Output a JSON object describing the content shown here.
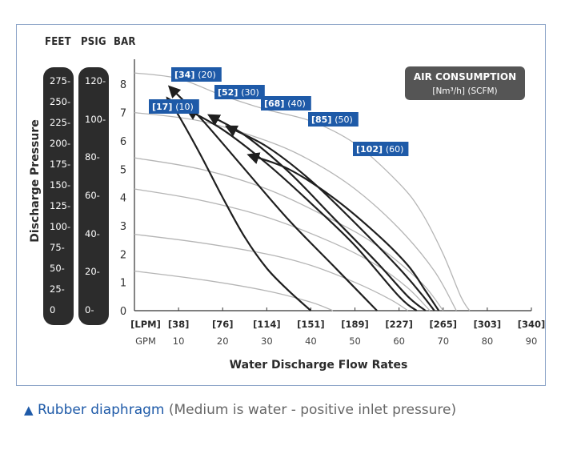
{
  "units": {
    "feet": "FEET",
    "psig": "PSIG",
    "bar": "BAR"
  },
  "feet_ticks": [
    "275",
    "250",
    "225",
    "200",
    "175",
    "150",
    "125",
    "100",
    "75",
    "50",
    "25",
    "0"
  ],
  "psig_ticks": [
    "120",
    "100",
    "80",
    "60",
    "40",
    "20",
    "0"
  ],
  "bar_ticks": [
    "8",
    "7",
    "6",
    "5",
    "4",
    "3",
    "2",
    "1",
    "0"
  ],
  "lpm_ticks": [
    "[LPM]",
    "[38]",
    "[76]",
    "[114]",
    "[151]",
    "[189]",
    "[227]",
    "[265]",
    "[303]",
    "[340]"
  ],
  "gpm_ticks": [
    "GPM",
    "10",
    "20",
    "30",
    "40",
    "50",
    "60",
    "70",
    "80",
    "90"
  ],
  "colors": {
    "curve_dark": "#1f1f1f",
    "curve_light": "#b5b5b5",
    "label_bg": "#1e5aa8",
    "pill": "#2c2c2c",
    "caption_blue": "#1e5aa8"
  },
  "chart_data": {
    "type": "line",
    "ylabel": "Discharge Pressure",
    "xlabel": "Water Discharge Flow Rates",
    "xlim": [
      0,
      90
    ],
    "ylim": [
      0,
      8.6
    ],
    "legend_box": {
      "title": "AIR CONSUMPTION",
      "subtitle": "[Nm³/h] (SCFM)"
    },
    "air_curves": [
      {
        "label_bold": "[17]",
        "label_light": "(10)",
        "points": [
          [
            7.5,
            7.5
          ],
          [
            10,
            6.9
          ],
          [
            15,
            5.5
          ],
          [
            20,
            4.0
          ],
          [
            25,
            2.6
          ],
          [
            30,
            1.5
          ],
          [
            35,
            0.7
          ],
          [
            40,
            0.0
          ]
        ]
      },
      {
        "label_bold": "[34]",
        "label_light": "(20)",
        "points": [
          [
            8,
            7.9
          ],
          [
            15,
            6.8
          ],
          [
            25,
            5.0
          ],
          [
            35,
            3.2
          ],
          [
            45,
            1.6
          ],
          [
            55,
            0.0
          ]
        ]
      },
      {
        "label_bold": "[52]",
        "label_light": "(30)",
        "points": [
          [
            12,
            7.1
          ],
          [
            20,
            6.4
          ],
          [
            30,
            5.2
          ],
          [
            40,
            3.8
          ],
          [
            50,
            2.3
          ],
          [
            60,
            0.5
          ],
          [
            64,
            0.0
          ]
        ]
      },
      {
        "label_bold": "[68]",
        "label_light": "(40)",
        "points": [
          [
            17,
            6.9
          ],
          [
            25,
            6.2
          ],
          [
            35,
            4.9
          ],
          [
            45,
            3.3
          ],
          [
            55,
            1.7
          ],
          [
            62,
            0.5
          ],
          [
            66,
            0.0
          ]
        ]
      },
      {
        "label_bold": "[85]",
        "label_light": "(50)",
        "points": [
          [
            21,
            6.5
          ],
          [
            30,
            5.8
          ],
          [
            40,
            4.6
          ],
          [
            50,
            3.1
          ],
          [
            60,
            1.5
          ],
          [
            65,
            0.6
          ],
          [
            68,
            0.0
          ]
        ]
      },
      {
        "label_bold": "[102]",
        "label_light": "(60)",
        "points": [
          [
            26,
            5.5
          ],
          [
            35,
            5.0
          ],
          [
            45,
            4.0
          ],
          [
            55,
            2.7
          ],
          [
            62,
            1.6
          ],
          [
            66,
            0.7
          ],
          [
            69,
            0.0
          ]
        ]
      }
    ],
    "limit_curves": [
      {
        "points": [
          [
            0,
            8.4
          ],
          [
            10,
            8.2
          ],
          [
            20,
            7.6
          ],
          [
            30,
            7.1
          ],
          [
            40,
            6.7
          ],
          [
            50,
            5.9
          ],
          [
            60,
            4.5
          ],
          [
            65,
            3.5
          ],
          [
            70,
            2.0
          ],
          [
            74,
            0.5
          ],
          [
            76,
            0.0
          ]
        ]
      },
      {
        "points": [
          [
            0,
            7.0
          ],
          [
            15,
            6.7
          ],
          [
            30,
            6.0
          ],
          [
            40,
            5.3
          ],
          [
            50,
            4.3
          ],
          [
            60,
            2.9
          ],
          [
            68,
            1.4
          ],
          [
            73,
            0.0
          ]
        ]
      },
      {
        "points": [
          [
            0,
            5.4
          ],
          [
            15,
            5.0
          ],
          [
            30,
            4.3
          ],
          [
            45,
            3.2
          ],
          [
            55,
            2.3
          ],
          [
            65,
            1.0
          ],
          [
            70,
            0.0
          ]
        ]
      },
      {
        "points": [
          [
            0,
            4.3
          ],
          [
            15,
            3.9
          ],
          [
            30,
            3.3
          ],
          [
            45,
            2.4
          ],
          [
            55,
            1.6
          ],
          [
            62,
            0.8
          ],
          [
            67,
            0.0
          ]
        ]
      },
      {
        "points": [
          [
            0,
            2.7
          ],
          [
            15,
            2.4
          ],
          [
            30,
            2.0
          ],
          [
            40,
            1.6
          ],
          [
            50,
            1.0
          ],
          [
            58,
            0.4
          ],
          [
            62,
            0.0
          ]
        ]
      },
      {
        "points": [
          [
            0,
            1.4
          ],
          [
            15,
            1.1
          ],
          [
            30,
            0.7
          ],
          [
            40,
            0.3
          ],
          [
            45,
            0.0
          ]
        ]
      }
    ]
  },
  "caption": {
    "triangle": "▲",
    "main": "Rubber diaphragm",
    "note": "  (Medium is water -  positive inlet pressure)"
  }
}
